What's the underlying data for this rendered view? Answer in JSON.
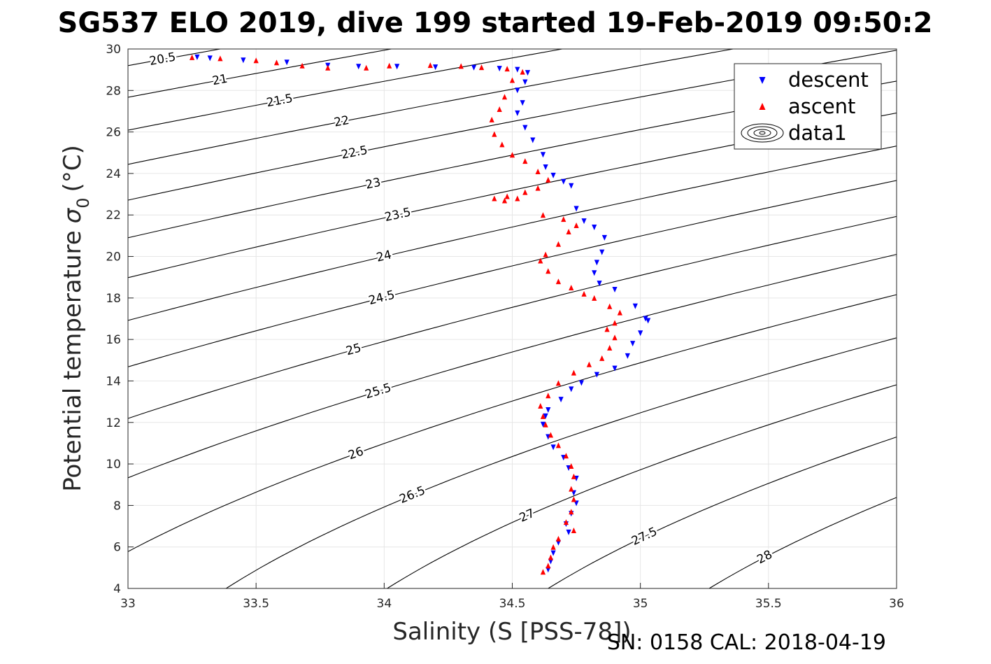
{
  "title": "SG537 ELO 2019, dive 199 started 19-Feb-2019 09:50:2",
  "footer": "SN: 0158  CAL: 2018-04-19",
  "chart_data": {
    "type": "scatter",
    "xlabel": "Salinity (S [PSS-78])",
    "ylabel": "Potential temperature",
    "ylabel_symbol": "σ",
    "ylabel_sub": "0",
    "ylabel_unit": "(°C)",
    "xlim": [
      33,
      36
    ],
    "ylim": [
      4,
      30
    ],
    "xticks": [
      33,
      33.5,
      34,
      34.5,
      35,
      35.5,
      36
    ],
    "yticks": [
      4,
      6,
      8,
      10,
      12,
      14,
      16,
      18,
      20,
      22,
      24,
      26,
      28,
      30
    ],
    "grid": true,
    "legend": {
      "placement": "top-right",
      "entries": [
        "descent",
        "ascent",
        "data1"
      ]
    },
    "colors": {
      "descent": "#0000ff",
      "ascent": "#ff0000",
      "contour": "#000000"
    },
    "contour_levels": [
      20.5,
      21,
      21.5,
      22,
      22.5,
      23,
      23.5,
      24,
      24.5,
      25,
      25.5,
      26,
      26.5,
      27,
      27.5,
      28
    ],
    "series": [
      {
        "name": "descent",
        "marker": "triangle-down",
        "points": [
          [
            33.27,
            29.6
          ],
          [
            33.32,
            29.55
          ],
          [
            33.45,
            29.45
          ],
          [
            33.62,
            29.35
          ],
          [
            33.78,
            29.2
          ],
          [
            33.9,
            29.15
          ],
          [
            34.05,
            29.15
          ],
          [
            34.2,
            29.12
          ],
          [
            34.35,
            29.1
          ],
          [
            34.45,
            29.05
          ],
          [
            34.52,
            29.0
          ],
          [
            34.56,
            28.85
          ],
          [
            34.55,
            28.4
          ],
          [
            34.52,
            28.0
          ],
          [
            34.54,
            27.4
          ],
          [
            34.52,
            26.9
          ],
          [
            34.55,
            26.2
          ],
          [
            34.58,
            25.6
          ],
          [
            34.62,
            24.9
          ],
          [
            34.63,
            24.3
          ],
          [
            34.66,
            23.9
          ],
          [
            34.7,
            23.6
          ],
          [
            34.73,
            23.4
          ],
          [
            34.75,
            22.3
          ],
          [
            34.78,
            21.7
          ],
          [
            34.82,
            21.4
          ],
          [
            34.86,
            20.9
          ],
          [
            34.85,
            20.2
          ],
          [
            34.83,
            19.7
          ],
          [
            34.82,
            19.2
          ],
          [
            34.84,
            18.7
          ],
          [
            34.9,
            18.4
          ],
          [
            34.98,
            17.6
          ],
          [
            35.02,
            17.0
          ],
          [
            35.03,
            16.9
          ],
          [
            35.0,
            16.3
          ],
          [
            34.97,
            15.8
          ],
          [
            34.95,
            15.2
          ],
          [
            34.9,
            14.6
          ],
          [
            34.83,
            14.3
          ],
          [
            34.77,
            13.9
          ],
          [
            34.73,
            13.6
          ],
          [
            34.69,
            13.1
          ],
          [
            34.64,
            12.6
          ],
          [
            34.63,
            12.3
          ],
          [
            34.62,
            11.9
          ],
          [
            34.64,
            11.3
          ],
          [
            34.66,
            10.8
          ],
          [
            34.7,
            10.3
          ],
          [
            34.72,
            9.8
          ],
          [
            34.75,
            9.3
          ],
          [
            34.74,
            8.6
          ],
          [
            34.75,
            8.1
          ],
          [
            34.73,
            7.6
          ],
          [
            34.71,
            7.1
          ],
          [
            34.72,
            6.7
          ],
          [
            34.68,
            6.2
          ],
          [
            34.66,
            5.7
          ],
          [
            34.65,
            5.3
          ],
          [
            34.64,
            4.9
          ]
        ]
      },
      {
        "name": "ascent",
        "marker": "triangle-up",
        "points": [
          [
            33.25,
            29.6
          ],
          [
            33.36,
            29.55
          ],
          [
            33.5,
            29.45
          ],
          [
            33.58,
            29.35
          ],
          [
            33.68,
            29.2
          ],
          [
            33.78,
            29.1
          ],
          [
            33.93,
            29.1
          ],
          [
            34.02,
            29.2
          ],
          [
            34.18,
            29.22
          ],
          [
            34.3,
            29.18
          ],
          [
            34.38,
            29.12
          ],
          [
            34.48,
            29.05
          ],
          [
            34.54,
            28.9
          ],
          [
            34.5,
            28.5
          ],
          [
            34.47,
            27.7
          ],
          [
            34.45,
            27.1
          ],
          [
            34.42,
            26.6
          ],
          [
            34.43,
            25.9
          ],
          [
            34.46,
            25.4
          ],
          [
            34.5,
            24.9
          ],
          [
            34.55,
            24.6
          ],
          [
            34.6,
            24.1
          ],
          [
            34.64,
            23.7
          ],
          [
            34.6,
            23.3
          ],
          [
            34.55,
            23.1
          ],
          [
            34.48,
            22.9
          ],
          [
            34.43,
            22.8
          ],
          [
            34.47,
            22.7
          ],
          [
            34.52,
            22.8
          ],
          [
            34.62,
            22.0
          ],
          [
            34.7,
            21.8
          ],
          [
            34.75,
            21.5
          ],
          [
            34.72,
            21.2
          ],
          [
            34.68,
            20.6
          ],
          [
            34.63,
            20.1
          ],
          [
            34.61,
            19.8
          ],
          [
            34.64,
            19.3
          ],
          [
            34.68,
            18.8
          ],
          [
            34.73,
            18.5
          ],
          [
            34.78,
            18.2
          ],
          [
            34.82,
            18.0
          ],
          [
            34.88,
            17.6
          ],
          [
            34.92,
            17.3
          ],
          [
            34.9,
            16.8
          ],
          [
            34.87,
            16.5
          ],
          [
            34.9,
            16.1
          ],
          [
            34.88,
            15.6
          ],
          [
            34.85,
            15.1
          ],
          [
            34.8,
            14.8
          ],
          [
            34.74,
            14.4
          ],
          [
            34.68,
            13.9
          ],
          [
            34.64,
            13.3
          ],
          [
            34.61,
            12.8
          ],
          [
            34.62,
            12.3
          ],
          [
            34.63,
            11.9
          ],
          [
            34.65,
            11.4
          ],
          [
            34.68,
            10.9
          ],
          [
            34.71,
            10.4
          ],
          [
            34.73,
            9.9
          ],
          [
            34.74,
            9.4
          ],
          [
            34.73,
            8.8
          ],
          [
            34.74,
            8.3
          ],
          [
            34.73,
            7.7
          ],
          [
            34.71,
            7.2
          ],
          [
            34.74,
            6.8
          ],
          [
            34.68,
            6.4
          ],
          [
            34.66,
            6.0
          ],
          [
            34.65,
            5.5
          ],
          [
            34.64,
            5.1
          ],
          [
            34.62,
            4.8
          ]
        ]
      }
    ]
  }
}
